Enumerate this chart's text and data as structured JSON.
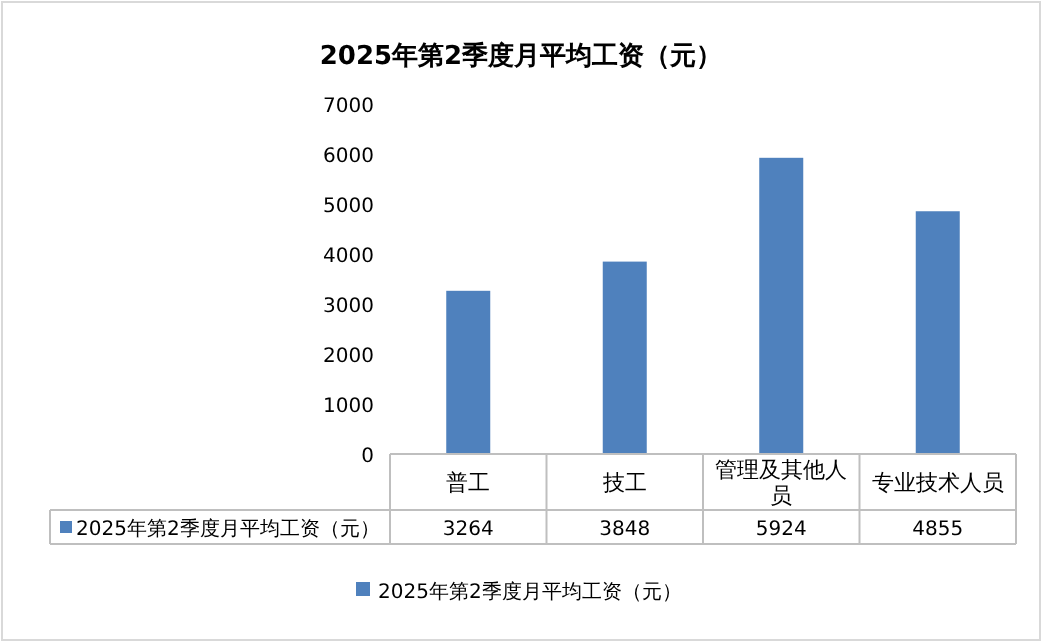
{
  "chart_data": {
    "type": "bar",
    "title": "2025年第2季度月平均工资（元）",
    "categories": [
      "普工",
      "技工",
      "管理及其他人员",
      "专业技术人员"
    ],
    "series": [
      {
        "name": "2025年第2季度月平均工资（元）",
        "color": "#4f81bd",
        "values": [
          3264,
          3848,
          5924,
          4855
        ]
      }
    ],
    "ylim": [
      0,
      7000
    ],
    "yticks": [
      0,
      1000,
      2000,
      3000,
      4000,
      5000,
      6000,
      7000
    ],
    "data_labels": true,
    "legend": "bottom"
  }
}
